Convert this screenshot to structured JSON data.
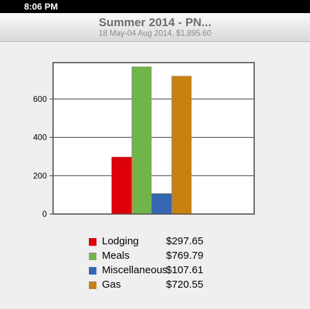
{
  "status_bar": {
    "time": "8:06 PM"
  },
  "header": {
    "title": "Summer 2014 - PN...",
    "subtitle": "18 May-04 Aug 2014, $1,895.60"
  },
  "legend": [
    {
      "label": "Lodging",
      "value": "$297.65",
      "color": "#e0000c"
    },
    {
      "label": "Meals",
      "value": "$769.79",
      "color": "#70b54a"
    },
    {
      "label": "Miscellaneous",
      "value": "$107.61",
      "color": "#3567b2"
    },
    {
      "label": "Gas",
      "value": "$720.55",
      "color": "#c8800f"
    }
  ],
  "chart_data": {
    "type": "bar",
    "categories": [
      "Lodging",
      "Meals",
      "Miscellaneous",
      "Gas"
    ],
    "values": [
      297.65,
      769.79,
      107.61,
      720.55
    ],
    "colors": [
      "#e0000c",
      "#70b54a",
      "#3567b2",
      "#c8800f"
    ],
    "yticks": [
      0,
      200,
      400,
      600
    ],
    "ylim": [
      0,
      790
    ],
    "grid": true
  }
}
